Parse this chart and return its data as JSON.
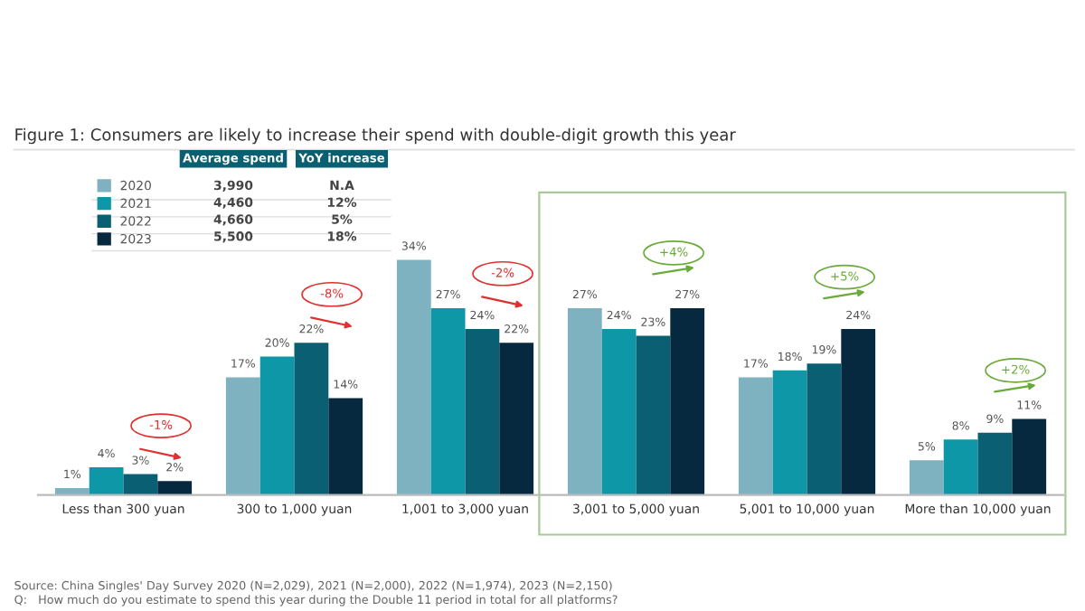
{
  "chart_data": {
    "type": "bar",
    "title": "Figure 1: Consumers are likely to increase their spend with double-digit growth this year",
    "categories": [
      "Less than 300 yuan",
      "300 to 1,000 yuan",
      "1,001 to 3,000 yuan",
      "3,001 to 5,000 yuan",
      "5,001 to 10,000 yuan",
      "More than 10,000 yuan"
    ],
    "series": [
      {
        "name": "2020",
        "color": "#7fb2c0",
        "values": [
          1,
          17,
          34,
          27,
          17,
          5
        ],
        "value_labels": [
          "1%",
          "17%",
          "34%",
          "27%",
          "17%",
          "5%"
        ]
      },
      {
        "name": "2021",
        "color": "#0e97a6",
        "values": [
          4,
          20,
          27,
          24,
          18,
          8
        ],
        "value_labels": [
          "4%",
          "20%",
          "27%",
          "24%",
          "18%",
          "8%"
        ]
      },
      {
        "name": "2022",
        "color": "#0b5f73",
        "values": [
          3,
          22,
          24,
          23,
          19,
          9
        ],
        "value_labels": [
          "3%",
          "22%",
          "24%",
          "23%",
          "19%",
          "9%"
        ]
      },
      {
        "name": "2023",
        "color": "#06293f",
        "values": [
          2,
          14,
          22,
          27,
          24,
          11
        ],
        "value_labels": [
          "2%",
          "14%",
          "22%",
          "27%",
          "24%",
          "11%"
        ]
      }
    ],
    "ylim": [
      0,
      38
    ],
    "legend": "top left",
    "legend_title": "Average spend",
    "annotations": [
      "-1%",
      "-8%",
      "-2%",
      "+4%",
      "+5%",
      "+2%",
      "YoY increase",
      "3,990",
      "N.A",
      "4,460",
      "12%",
      "4,660",
      "5%",
      "5,500",
      "18%",
      "Source: China Singles' Day Survey 2020 (N=2,029), 2021 (N=2,000), 2022 (N=1,974), 2023 (N=2,150)",
      "Q:   How much do you estimate to spend this year during the Double 11 period in total for all platforms?"
    ]
  }
}
